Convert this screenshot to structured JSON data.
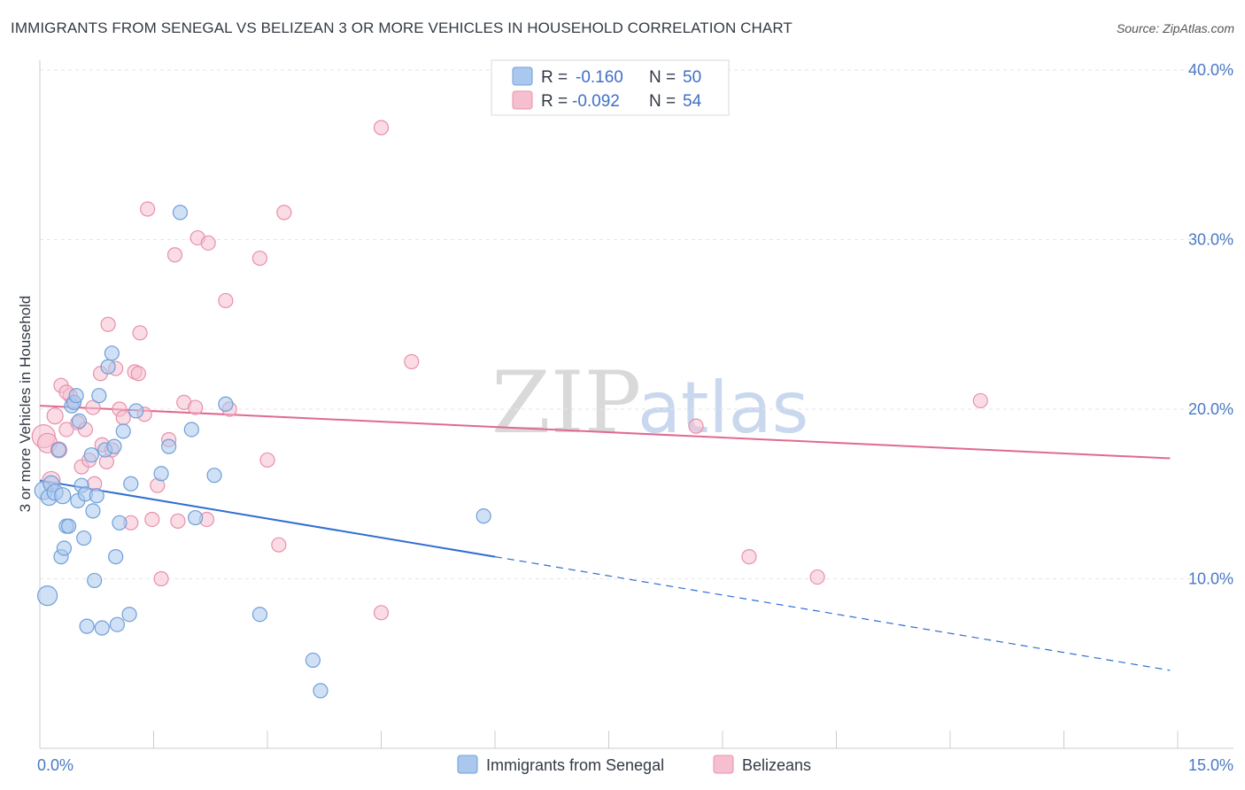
{
  "header": {
    "title": "IMMIGRANTS FROM SENEGAL VS BELIZEAN 3 OR MORE VEHICLES IN HOUSEHOLD CORRELATION CHART",
    "source": "Source: ZipAtlas.com"
  },
  "watermark": {
    "zip": "ZIP",
    "atlas": "atlas"
  },
  "colors": {
    "blue_fill": "#aac8ee",
    "blue_stroke": "#6f9fd8",
    "blue_line": "#2f6fd0",
    "pink_fill": "#f6bfd0",
    "pink_stroke": "#e890ac",
    "pink_line": "#e06a92",
    "grid": "#e6e6e6",
    "tick_text": "#4a78c4"
  },
  "chart_data": {
    "type": "scatter",
    "title": "IMMIGRANTS FROM SENEGAL VS BELIZEAN 3 OR MORE VEHICLES IN HOUSEHOLD CORRELATION CHART",
    "ylabel": "3 or more Vehicles in Household",
    "xlim": [
      0,
      15
    ],
    "ylim": [
      0,
      40
    ],
    "x_tick_labels": {
      "min": "0.0%",
      "max": "15.0%"
    },
    "y_ticks": [
      {
        "value": 10,
        "label": "10.0%"
      },
      {
        "value": 20,
        "label": "20.0%"
      },
      {
        "value": 30,
        "label": "30.0%"
      },
      {
        "value": 40,
        "label": "40.0%"
      }
    ],
    "legend": [
      {
        "r_label": "R =",
        "r_value": "-0.160",
        "n_label": "N =",
        "n_value": "50"
      },
      {
        "r_label": "R =",
        "r_value": "-0.092",
        "n_label": "N =",
        "n_value": "54"
      }
    ],
    "series": [
      {
        "name": "Immigrants from Senegal",
        "color_key": "blue",
        "trend": {
          "x0": 0.0,
          "y0": 15.8,
          "x1": 6.0,
          "y1": 11.3,
          "x_dash_end": 14.9,
          "y_dash_end": 4.6
        },
        "points": [
          [
            0.05,
            15.2,
            10
          ],
          [
            0.1,
            9.0,
            11
          ],
          [
            0.12,
            14.8,
            9
          ],
          [
            0.15,
            15.6,
            9
          ],
          [
            0.2,
            15.1,
            9
          ],
          [
            0.25,
            17.6,
            8
          ],
          [
            0.3,
            14.9,
            9
          ],
          [
            0.28,
            11.3,
            8
          ],
          [
            0.32,
            11.8,
            8
          ],
          [
            0.35,
            13.1,
            8
          ],
          [
            0.38,
            13.1,
            8
          ],
          [
            0.42,
            20.2,
            8
          ],
          [
            0.45,
            20.4,
            8
          ],
          [
            0.48,
            20.8,
            8
          ],
          [
            0.5,
            14.6,
            8
          ],
          [
            0.52,
            19.3,
            8
          ],
          [
            0.55,
            15.5,
            8
          ],
          [
            0.58,
            12.4,
            8
          ],
          [
            0.6,
            15.0,
            8
          ],
          [
            0.62,
            7.2,
            8
          ],
          [
            0.68,
            17.3,
            8
          ],
          [
            0.7,
            14.0,
            8
          ],
          [
            0.72,
            9.9,
            8
          ],
          [
            0.75,
            14.9,
            8
          ],
          [
            0.78,
            20.8,
            8
          ],
          [
            0.82,
            7.1,
            8
          ],
          [
            0.86,
            17.6,
            8
          ],
          [
            0.9,
            22.5,
            8
          ],
          [
            0.95,
            23.3,
            8
          ],
          [
            0.98,
            17.8,
            8
          ],
          [
            1.0,
            11.3,
            8
          ],
          [
            1.02,
            7.3,
            8
          ],
          [
            1.05,
            13.3,
            8
          ],
          [
            1.1,
            18.7,
            8
          ],
          [
            1.18,
            7.9,
            8
          ],
          [
            1.2,
            15.6,
            8
          ],
          [
            1.27,
            19.9,
            8
          ],
          [
            1.6,
            16.2,
            8
          ],
          [
            1.7,
            17.8,
            8
          ],
          [
            1.85,
            31.6,
            8
          ],
          [
            2.0,
            18.8,
            8
          ],
          [
            2.05,
            13.6,
            8
          ],
          [
            2.3,
            16.1,
            8
          ],
          [
            2.45,
            20.3,
            8
          ],
          [
            2.9,
            7.9,
            8
          ],
          [
            3.6,
            5.2,
            8
          ],
          [
            3.7,
            3.4,
            8
          ],
          [
            5.85,
            13.7,
            8
          ]
        ]
      },
      {
        "name": "Belizeans",
        "color_key": "pink",
        "trend": {
          "x0": 0.0,
          "y0": 20.2,
          "x1": 14.9,
          "y1": 17.1
        },
        "points": [
          [
            0.05,
            18.4,
            13
          ],
          [
            0.1,
            18.0,
            11
          ],
          [
            0.15,
            15.8,
            10
          ],
          [
            0.2,
            19.6,
            9
          ],
          [
            0.25,
            17.6,
            9
          ],
          [
            0.28,
            21.4,
            8
          ],
          [
            0.35,
            18.8,
            8
          ],
          [
            0.4,
            20.8,
            8
          ],
          [
            0.45,
            20.4,
            8
          ],
          [
            0.5,
            19.2,
            8
          ],
          [
            0.55,
            16.6,
            8
          ],
          [
            0.6,
            18.8,
            8
          ],
          [
            0.65,
            17.0,
            8
          ],
          [
            0.7,
            20.1,
            8
          ],
          [
            0.72,
            15.6,
            8
          ],
          [
            0.8,
            22.1,
            8
          ],
          [
            0.82,
            17.9,
            8
          ],
          [
            0.88,
            16.9,
            8
          ],
          [
            0.9,
            25.0,
            8
          ],
          [
            0.95,
            17.6,
            8
          ],
          [
            1.0,
            22.4,
            8
          ],
          [
            1.05,
            20.0,
            8
          ],
          [
            1.1,
            19.5,
            8
          ],
          [
            1.2,
            13.3,
            8
          ],
          [
            1.25,
            22.2,
            8
          ],
          [
            1.32,
            24.5,
            8
          ],
          [
            1.38,
            19.7,
            8
          ],
          [
            1.42,
            31.8,
            8
          ],
          [
            1.48,
            13.5,
            8
          ],
          [
            1.55,
            15.5,
            8
          ],
          [
            1.6,
            10.0,
            8
          ],
          [
            1.7,
            18.2,
            8
          ],
          [
            1.78,
            29.1,
            8
          ],
          [
            1.82,
            13.4,
            8
          ],
          [
            1.9,
            20.4,
            8
          ],
          [
            2.05,
            20.1,
            8
          ],
          [
            2.08,
            30.1,
            8
          ],
          [
            2.22,
            29.8,
            8
          ],
          [
            2.2,
            13.5,
            8
          ],
          [
            2.45,
            26.4,
            8
          ],
          [
            2.5,
            20.0,
            8
          ],
          [
            2.9,
            28.9,
            8
          ],
          [
            3.0,
            17.0,
            8
          ],
          [
            3.15,
            12.0,
            8
          ],
          [
            3.22,
            31.6,
            8
          ],
          [
            4.5,
            36.6,
            8
          ],
          [
            4.5,
            8.0,
            8
          ],
          [
            4.9,
            22.8,
            8
          ],
          [
            8.65,
            19.0,
            8
          ],
          [
            9.35,
            11.3,
            8
          ],
          [
            10.25,
            10.1,
            8
          ],
          [
            12.4,
            20.5,
            8
          ],
          [
            1.3,
            22.1,
            8
          ],
          [
            0.35,
            21.0,
            8
          ]
        ]
      }
    ]
  }
}
